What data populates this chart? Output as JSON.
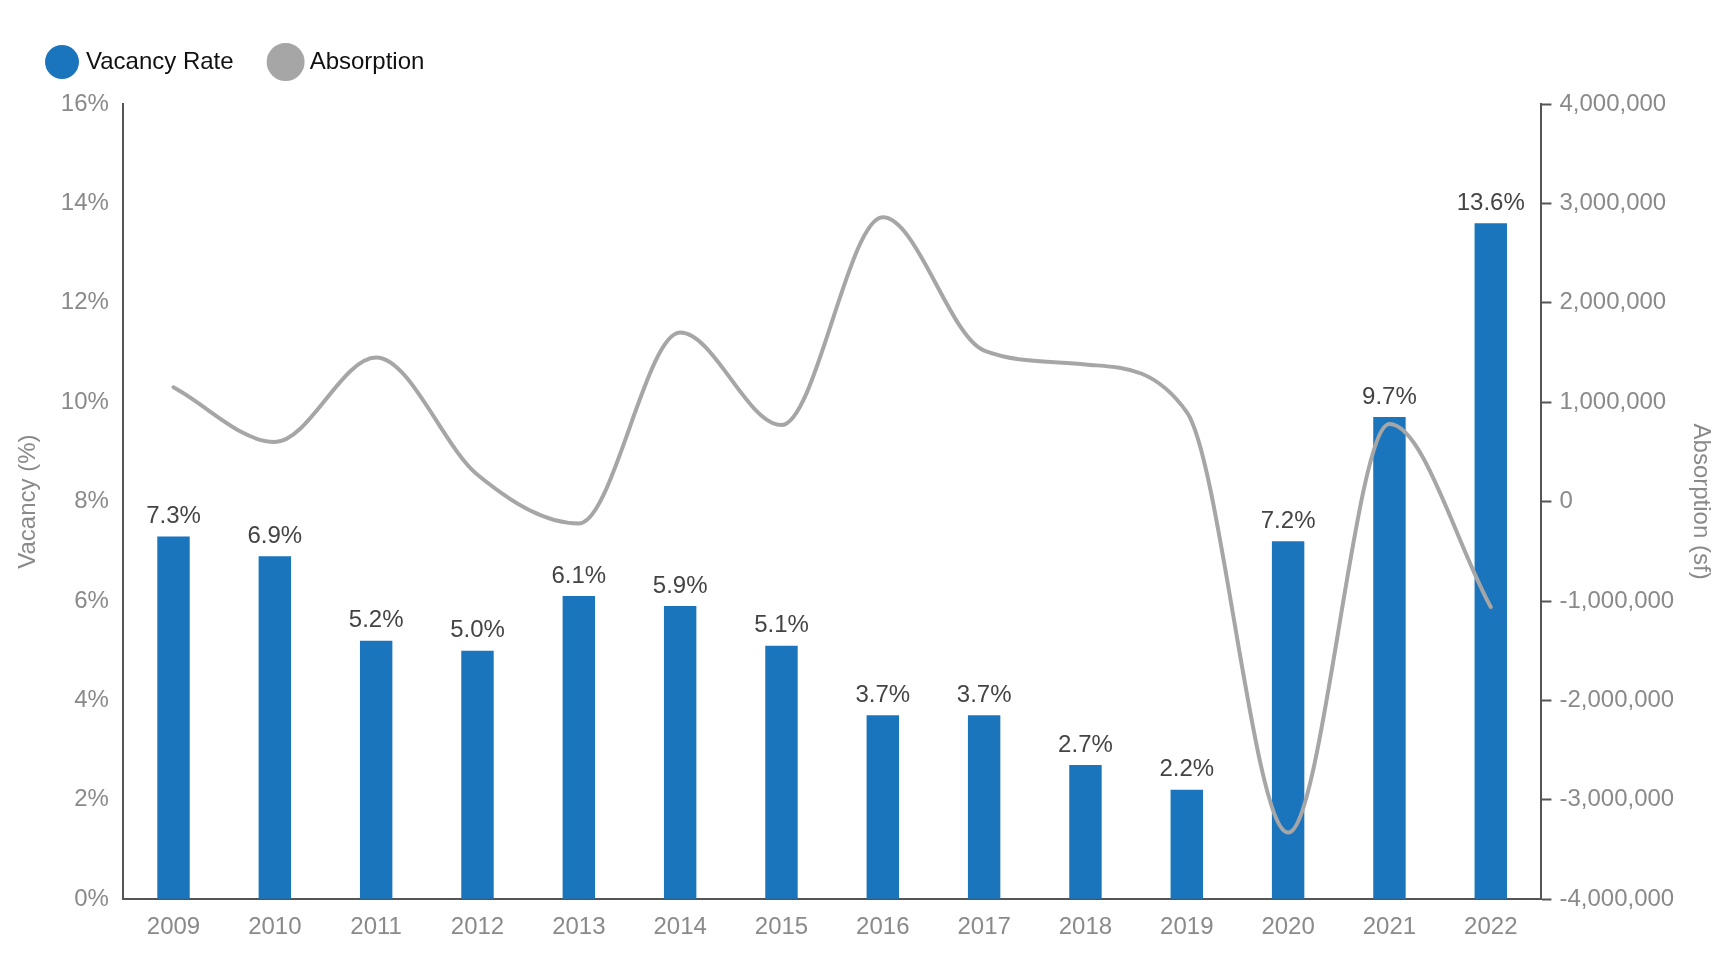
{
  "chart_data": {
    "type": "bar",
    "xlabel": null,
    "ylabel": "Vacancy (%)",
    "y2label": "Absorption (sf)",
    "categories": [
      "2009",
      "2010",
      "2011",
      "2012",
      "2013",
      "2014",
      "2015",
      "2016",
      "2017",
      "2018",
      "2019",
      "2020",
      "2021",
      "2022"
    ],
    "series": [
      {
        "name": "Vacancy Rate",
        "color": "#1b75bc",
        "values": [
          7.3,
          6.9,
          5.2,
          5.0,
          6.1,
          5.9,
          5.1,
          3.7,
          3.7,
          2.7,
          2.2,
          7.2,
          9.7,
          13.6
        ],
        "value_labels": [
          "7.3%",
          "6.9%",
          "5.2%",
          "5.0%",
          "6.1%",
          "5.9%",
          "5.1%",
          "3.7%",
          "3.7%",
          "2.7%",
          "2.2%",
          "7.2%",
          "9.7%",
          "13.6%"
        ]
      },
      {
        "name": "Absorption",
        "type": "line",
        "axis": "y2",
        "color": "#a6a6a6",
        "values": [
          1150000,
          600000,
          1450000,
          270000,
          -220000,
          1700000,
          770000,
          2860000,
          1520000,
          1380000,
          900000,
          -3330000,
          780000,
          -1060000
        ]
      }
    ],
    "ylim": [
      0,
      16
    ],
    "yticks": [
      {
        "value": 0,
        "label": "0%"
      },
      {
        "value": 2,
        "label": "2%"
      },
      {
        "value": 4,
        "label": "4%"
      },
      {
        "value": 6,
        "label": "6%"
      },
      {
        "value": 8,
        "label": "8%"
      },
      {
        "value": 10,
        "label": "10%"
      },
      {
        "value": 12,
        "label": "12%"
      },
      {
        "value": 14,
        "label": "14%"
      },
      {
        "value": 16,
        "label": "16%"
      }
    ],
    "y2lim": [
      -4000000,
      4000000
    ],
    "y2ticks": [
      {
        "value": -4000000,
        "label": "-4,000,000"
      },
      {
        "value": -3000000,
        "label": "-3,000,000"
      },
      {
        "value": -2000000,
        "label": "-2,000,000"
      },
      {
        "value": -1000000,
        "label": "-1,000,000"
      },
      {
        "value": 0,
        "label": "0"
      },
      {
        "value": 1000000,
        "label": "1,000,000"
      },
      {
        "value": 2000000,
        "label": "2,000,000"
      },
      {
        "value": 3000000,
        "label": "3,000,000"
      },
      {
        "value": 4000000,
        "label": "4,000,000"
      }
    ],
    "grid": false,
    "legend": "top left",
    "marker": "none",
    "line_style": "solid"
  }
}
